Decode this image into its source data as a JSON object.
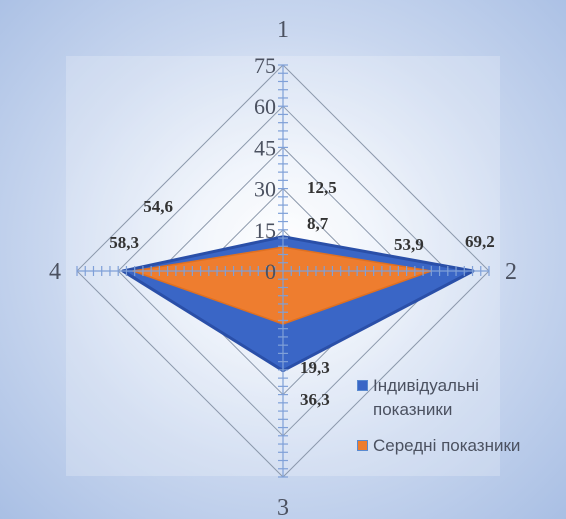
{
  "chart_data": {
    "type": "radar",
    "title": "",
    "axes": [
      "1",
      "2",
      "3",
      "4"
    ],
    "r_ticks": [
      "0",
      "15",
      "30",
      "45",
      "60",
      "75"
    ],
    "rlim": [
      0,
      75
    ],
    "series": [
      {
        "name": "Індивідуальні показники",
        "values": [
          12.5,
          69.2,
          36.3,
          58.3
        ],
        "fill": "#3a66c6",
        "stroke": "#2a4fa8"
      },
      {
        "name": "Середні показники",
        "values": [
          8.7,
          53.9,
          19.3,
          54.6
        ],
        "fill": "#ee7d2f",
        "stroke": "#e07020"
      }
    ],
    "data_labels": [
      "12,5",
      "8,7",
      "53,9",
      "69,2",
      "19,3",
      "36,3",
      "54,6",
      "58,3"
    ],
    "grid": true,
    "legend_position": "bottom-right",
    "colors": {
      "grid": "#8c99ac",
      "axis": "#7fa0d8",
      "text": "#4b5160"
    }
  },
  "legend": {
    "items": [
      {
        "label": "Індивідуальні показники",
        "color": "#3a66c6"
      },
      {
        "label": "Середні показники",
        "color": "#ee7d2f"
      }
    ]
  }
}
